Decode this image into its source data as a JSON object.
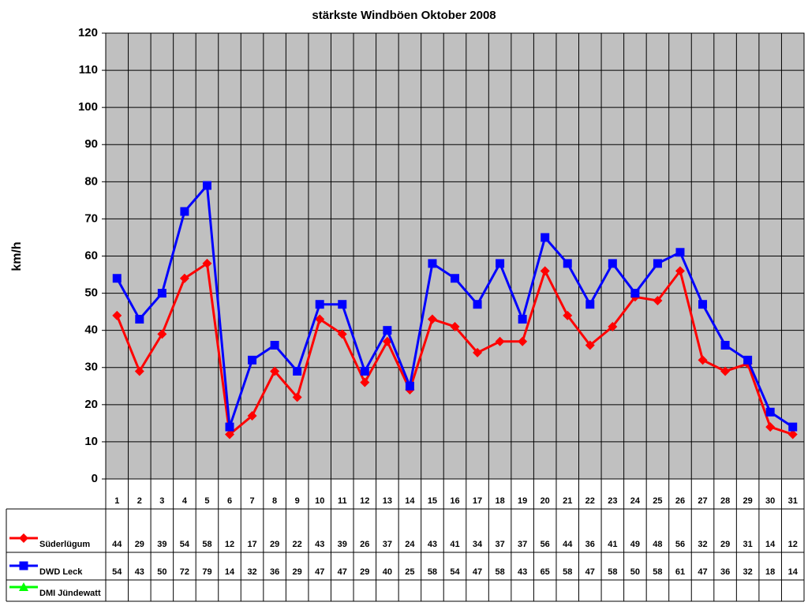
{
  "chart_data": {
    "type": "line",
    "title": "stärkste Windböen Oktober 2008",
    "y_label": "km/h",
    "categories": [
      "1",
      "2",
      "3",
      "4",
      "5",
      "6",
      "7",
      "8",
      "9",
      "10",
      "11",
      "12",
      "13",
      "14",
      "15",
      "16",
      "17",
      "18",
      "19",
      "20",
      "21",
      "22",
      "23",
      "24",
      "25",
      "26",
      "27",
      "28",
      "29",
      "30",
      "31"
    ],
    "series": [
      {
        "name": "Süderlügum",
        "color": "#ff0000",
        "marker": "diamond",
        "values": [
          44,
          29,
          39,
          54,
          58,
          12,
          17,
          29,
          22,
          43,
          39,
          26,
          37,
          24,
          43,
          41,
          34,
          37,
          37,
          56,
          44,
          36,
          41,
          49,
          48,
          56,
          32,
          29,
          31,
          14,
          12
        ]
      },
      {
        "name": "DWD Leck",
        "color": "#0000ff",
        "marker": "square",
        "values": [
          54,
          43,
          50,
          72,
          79,
          14,
          32,
          36,
          29,
          47,
          47,
          29,
          40,
          25,
          58,
          54,
          47,
          58,
          43,
          65,
          58,
          47,
          58,
          50,
          58,
          61,
          47,
          36,
          32,
          18,
          14
        ]
      },
      {
        "name": "DMI Jündewatt",
        "color": "#00ff00",
        "marker": "triangle",
        "values": [
          null,
          null,
          null,
          null,
          null,
          null,
          null,
          null,
          null,
          null,
          null,
          null,
          null,
          null,
          null,
          null,
          null,
          null,
          null,
          null,
          null,
          null,
          null,
          null,
          null,
          null,
          null,
          null,
          null,
          null,
          null
        ]
      }
    ],
    "ylim": [
      0,
      120
    ],
    "yticks": [
      0,
      10,
      20,
      30,
      40,
      50,
      60,
      70,
      80,
      90,
      100,
      110,
      120
    ],
    "grid": true,
    "plot_background": "#c0c0c0"
  }
}
